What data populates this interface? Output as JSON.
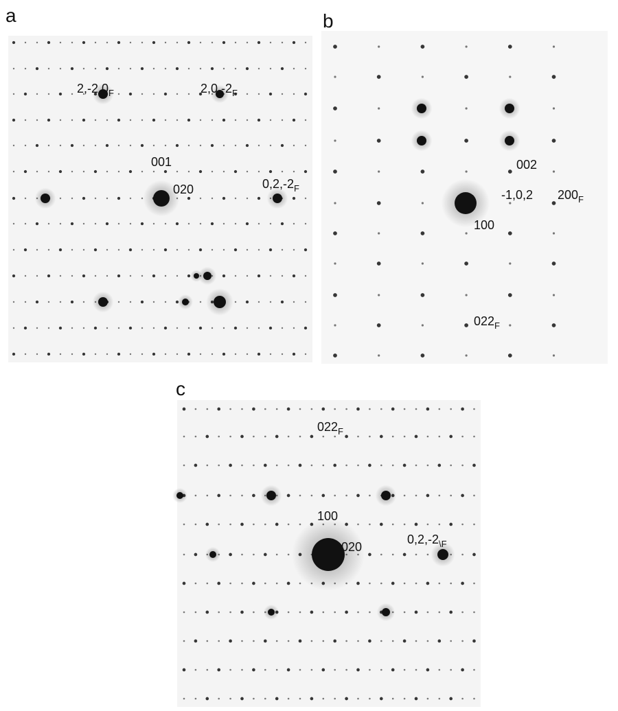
{
  "panels": [
    {
      "label": "a",
      "annotations": [
        {
          "text": "2,-2,0",
          "sub": "F"
        },
        {
          "text": "2,0,-2",
          "sub": "F"
        },
        {
          "text": "001"
        },
        {
          "text": "020"
        },
        {
          "text": "0,2,-2",
          "sub": "F"
        }
      ]
    },
    {
      "label": "b",
      "annotations": [
        {
          "text": "002"
        },
        {
          "text": "-1,0,2"
        },
        {
          "text": "200",
          "sub": "F"
        },
        {
          "text": "100"
        },
        {
          "text": "022",
          "sub": "F"
        }
      ]
    },
    {
      "label": "c",
      "annotations": [
        {
          "text": "022",
          "sub": "F"
        },
        {
          "text": "100"
        },
        {
          "text": "020"
        },
        {
          "text": "0,2,-2",
          "sub": "\\F"
        }
      ]
    }
  ]
}
